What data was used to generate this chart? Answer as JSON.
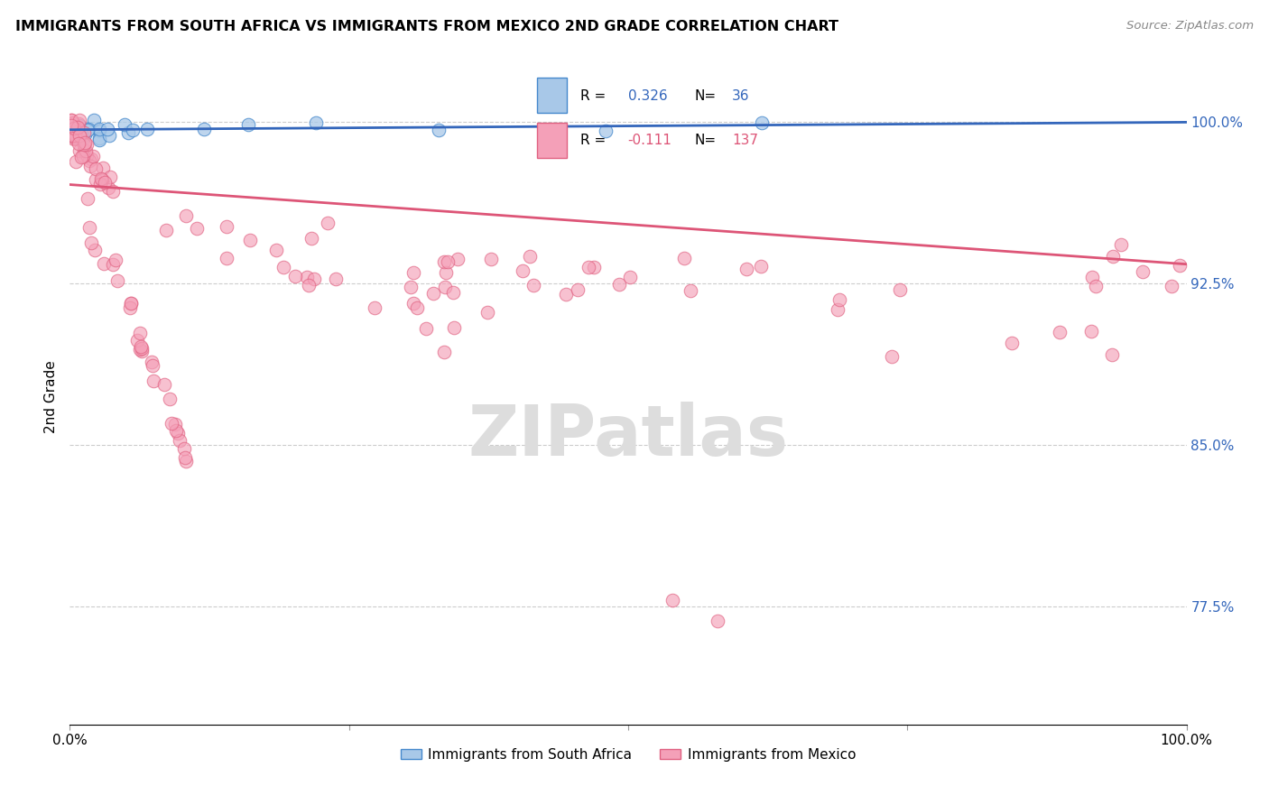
{
  "title": "IMMIGRANTS FROM SOUTH AFRICA VS IMMIGRANTS FROM MEXICO 2ND GRADE CORRELATION CHART",
  "source": "Source: ZipAtlas.com",
  "ylabel": "2nd Grade",
  "ytick_labels": [
    "100.0%",
    "92.5%",
    "85.0%",
    "77.5%"
  ],
  "ytick_values": [
    1.0,
    0.925,
    0.85,
    0.775
  ],
  "legend_label1": "Immigrants from South Africa",
  "legend_label2": "Immigrants from Mexico",
  "R1": 0.326,
  "N1": 36,
  "R2": -0.111,
  "N2": 137,
  "color_blue_fill": "#a8c8e8",
  "color_blue_edge": "#4488cc",
  "color_pink_fill": "#f4a0b8",
  "color_pink_edge": "#e06080",
  "color_blue_line": "#3366bb",
  "color_pink_line": "#dd5577",
  "color_blue_text": "#3366bb",
  "color_pink_text": "#dd5577",
  "watermark": "ZIPatlas",
  "xlim": [
    0.0,
    1.0
  ],
  "ylim": [
    0.72,
    1.025
  ],
  "blue_trend_start_y": 0.9965,
  "blue_trend_end_y": 1.0,
  "pink_trend_start_y": 0.971,
  "pink_trend_end_y": 0.934
}
